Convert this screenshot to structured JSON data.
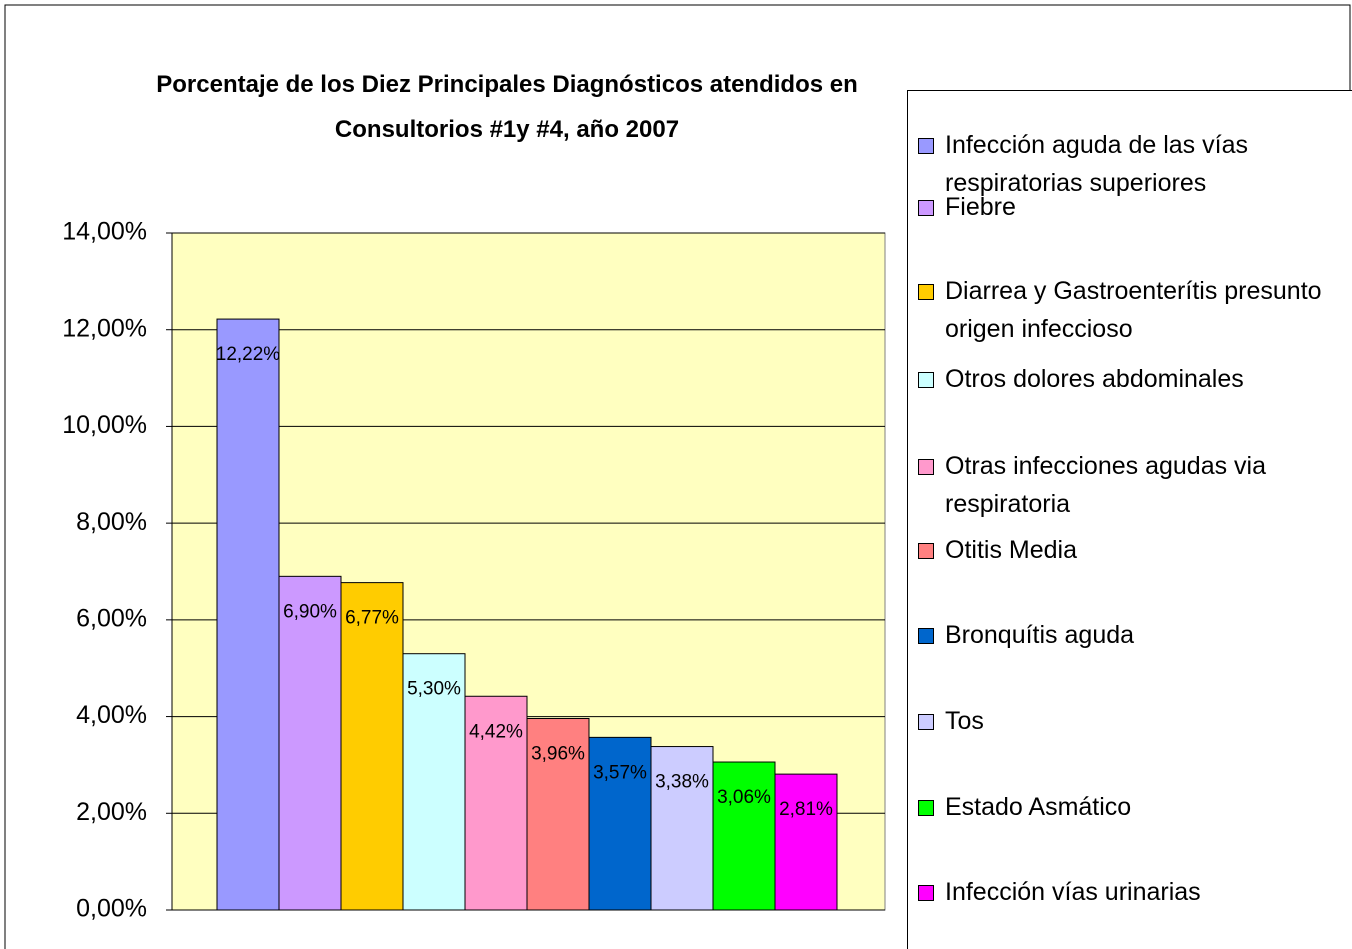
{
  "chart_data": {
    "type": "bar",
    "title": "Porcentaje de los Diez Principales Diagnósticos atendidos en Consultorios #1y #4, año 2007",
    "ylim": [
      0,
      14
    ],
    "yticks": [
      {
        "value": 0,
        "label": "0,00%"
      },
      {
        "value": 2,
        "label": "2,00%"
      },
      {
        "value": 4,
        "label": "4,00%"
      },
      {
        "value": 6,
        "label": "6,00%"
      },
      {
        "value": 8,
        "label": "8,00%"
      },
      {
        "value": 10,
        "label": "10,00%"
      },
      {
        "value": 12,
        "label": "12,00%"
      },
      {
        "value": 14,
        "label": "14,00%"
      }
    ],
    "grid": true,
    "legend": "right",
    "series": [
      {
        "name": "Infección aguda de las vías respiratorias superiores",
        "color": "#9999ff",
        "values": [
          12.22
        ],
        "value_labels": [
          "12,22%"
        ]
      },
      {
        "name": "Fiebre",
        "color": "#cc99ff",
        "values": [
          6.9
        ],
        "value_labels": [
          "6,90%"
        ]
      },
      {
        "name": "Diarrea y Gastroenterítis presunto origen infeccioso",
        "color": "#ffcc00",
        "values": [
          6.77
        ],
        "value_labels": [
          "6,77%"
        ]
      },
      {
        "name": "Otros dolores abdominales",
        "color": "#ccffff",
        "values": [
          5.3
        ],
        "value_labels": [
          "5,30%"
        ]
      },
      {
        "name": "Otras infecciones agudas via respiratoria",
        "color": "#ff99cc",
        "values": [
          4.42
        ],
        "value_labels": [
          "4,42%"
        ]
      },
      {
        "name": "Otitis Media",
        "color": "#ff8080",
        "values": [
          3.96
        ],
        "value_labels": [
          "3,96%"
        ]
      },
      {
        "name": "Bronquítis aguda",
        "color": "#0066cc",
        "values": [
          3.57
        ],
        "value_labels": [
          "3,57%"
        ]
      },
      {
        "name": "Tos",
        "color": "#ccccff",
        "values": [
          3.38
        ],
        "value_labels": [
          "3,38%"
        ]
      },
      {
        "name": "Estado Asmático",
        "color": "#00ff00",
        "values": [
          3.06
        ],
        "value_labels": [
          "3,06%"
        ]
      },
      {
        "name": "Infección vías urinarias",
        "color": "#ff00ff",
        "values": [
          2.81
        ],
        "value_labels": [
          "2,81%"
        ]
      }
    ]
  }
}
